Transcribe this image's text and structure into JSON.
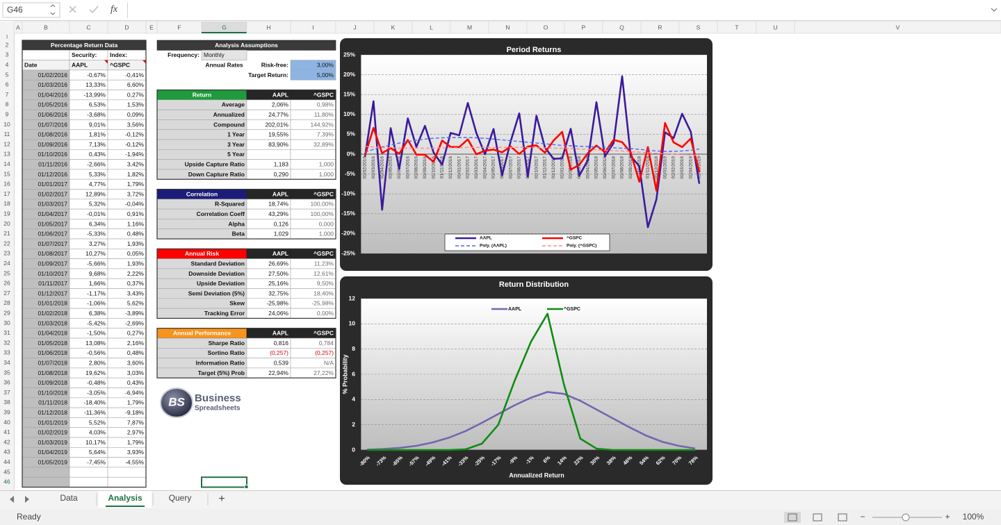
{
  "name_box": "G46",
  "formula_icon": "fx",
  "column_headers": [
    "A",
    "B",
    "C",
    "D",
    "E",
    "F",
    "G",
    "H",
    "I",
    "J",
    "K",
    "L",
    "M",
    "N",
    "O",
    "P",
    "Q",
    "R",
    "S",
    "T",
    "U",
    "V"
  ],
  "row_numbers": [
    1,
    2,
    3,
    4,
    5,
    6,
    7,
    8,
    9,
    10,
    11,
    12,
    13,
    14,
    15,
    16,
    17,
    18,
    19,
    20,
    21,
    22,
    23,
    24,
    25,
    26,
    27,
    28,
    29,
    30,
    31,
    32,
    33,
    34,
    35,
    36,
    37,
    38,
    39,
    40,
    41,
    42,
    43,
    44,
    45,
    46
  ],
  "return_data": {
    "title": "Percentage Return Data",
    "security_label": "Security:",
    "index_label": "Index:",
    "headers": [
      "Date",
      "AAPL",
      "^GSPC"
    ],
    "rows": [
      [
        "01/02/2016",
        "-0,67%",
        "-0,41%"
      ],
      [
        "01/03/2016",
        "13,33%",
        "6,60%"
      ],
      [
        "01/04/2016",
        "-13,99%",
        "0,27%"
      ],
      [
        "01/05/2016",
        "6,53%",
        "1,53%"
      ],
      [
        "01/06/2016",
        "-3,68%",
        "0,09%"
      ],
      [
        "01/07/2016",
        "9,01%",
        "3,56%"
      ],
      [
        "01/08/2016",
        "1,81%",
        "-0,12%"
      ],
      [
        "01/09/2016",
        "7,13%",
        "-0,12%"
      ],
      [
        "01/10/2016",
        "0,43%",
        "-1,94%"
      ],
      [
        "01/11/2016",
        "-2,66%",
        "3,42%"
      ],
      [
        "01/12/2016",
        "5,33%",
        "1,82%"
      ],
      [
        "01/01/2017",
        "4,77%",
        "1,79%"
      ],
      [
        "01/02/2017",
        "12,89%",
        "3,72%"
      ],
      [
        "01/03/2017",
        "5,32%",
        "-0,04%"
      ],
      [
        "01/04/2017",
        "-0,01%",
        "0,91%"
      ],
      [
        "01/05/2017",
        "6,34%",
        "1,16%"
      ],
      [
        "01/06/2017",
        "-5,33%",
        "0,48%"
      ],
      [
        "01/07/2017",
        "3,27%",
        "1,93%"
      ],
      [
        "01/08/2017",
        "10,27%",
        "0,05%"
      ],
      [
        "01/09/2017",
        "-5,66%",
        "1,93%"
      ],
      [
        "01/10/2017",
        "9,68%",
        "2,22%"
      ],
      [
        "01/11/2017",
        "1,66%",
        "0,37%"
      ],
      [
        "01/12/2017",
        "-1,17%",
        "3,43%"
      ],
      [
        "01/01/2018",
        "-1,06%",
        "5,62%"
      ],
      [
        "01/02/2018",
        "6,38%",
        "-3,89%"
      ],
      [
        "01/03/2018",
        "-5,42%",
        "-2,69%"
      ],
      [
        "01/04/2018",
        "-1,50%",
        "0,27%"
      ],
      [
        "01/05/2018",
        "13,08%",
        "2,16%"
      ],
      [
        "01/06/2018",
        "-0,56%",
        "0,48%"
      ],
      [
        "01/07/2018",
        "2,80%",
        "3,60%"
      ],
      [
        "01/08/2018",
        "19,62%",
        "3,03%"
      ],
      [
        "01/09/2018",
        "-0,48%",
        "0,43%"
      ],
      [
        "01/10/2018",
        "-3,05%",
        "-6,94%"
      ],
      [
        "01/11/2018",
        "-18,40%",
        "1,79%"
      ],
      [
        "01/12/2018",
        "-11,36%",
        "-9,18%"
      ],
      [
        "01/01/2019",
        "5,52%",
        "7,87%"
      ],
      [
        "01/02/2019",
        "4,03%",
        "2,97%"
      ],
      [
        "01/03/2019",
        "10,17%",
        "1,79%"
      ],
      [
        "01/04/2019",
        "5,64%",
        "3,93%"
      ],
      [
        "01/05/2019",
        "-7,45%",
        "-4,55%"
      ]
    ]
  },
  "assumptions": {
    "title": "Analysis Assumptions",
    "frequency_label": "Frequency:",
    "frequency": "Monthly",
    "annual_rates_label": "Annual Rates",
    "risk_free_label": "Risk-free:",
    "risk_free": "3,00%",
    "target_label": "Target Return:",
    "target": "5,00%"
  },
  "stat_tables": [
    {
      "title": "Return",
      "color": "#1f9a3c",
      "headers": [
        "AAPL",
        "^GSPC"
      ],
      "rows": [
        [
          "Average",
          "2,06%",
          "0,98%"
        ],
        [
          "Annualized",
          "24,77%",
          "11,80%"
        ],
        [
          "Compound",
          "202,01%",
          "144,92%"
        ],
        [
          "1 Year",
          "19,55%",
          "7,39%"
        ],
        [
          "3 Year",
          "83,90%",
          "32,89%"
        ],
        [
          "5 Year"
        ],
        [
          "Upside Capture Ratio",
          "1,183",
          "1,000"
        ],
        [
          "Down Capture Ratio",
          "0,290",
          "1,000"
        ]
      ]
    },
    {
      "title": "Correlation",
      "color": "#1c1c78",
      "headers": [
        "AAPL",
        "^GSPC"
      ],
      "rows": [
        [
          "R-Squared",
          "18,74%",
          "100,00%"
        ],
        [
          "Correlation Coeff",
          "43,29%",
          "100,00%"
        ],
        [
          "Alpha",
          "0,126",
          "0,000"
        ],
        [
          "Beta",
          "1,029",
          "1,000"
        ]
      ]
    },
    {
      "title": "Annual Risk",
      "color": "#ff0000",
      "headers": [
        "AAPL",
        "^GSPC"
      ],
      "rows": [
        [
          "Standard Deviation",
          "26,69%",
          "11,23%"
        ],
        [
          "Downside Deviation",
          "27,50%",
          "12,61%"
        ],
        [
          "Upside Deviation",
          "25,16%",
          "9,50%"
        ],
        [
          "Semi Deviation (5%)",
          "32,75%",
          "18,40%"
        ],
        [
          "Skew",
          "-25,98%",
          "-25,98%"
        ],
        [
          "Tracking Error",
          "24,06%",
          "0,00%"
        ]
      ]
    },
    {
      "title": "Annual Performance",
      "color": "#f7941d",
      "headers": [
        "AAPL",
        "^GSPC"
      ],
      "rows": [
        [
          "Sharpe Ratio",
          "0,816",
          "0,784"
        ],
        [
          "Sortino Ratio",
          "(0,257)",
          "(0,257)"
        ],
        [
          "Information Ratio",
          "0,539",
          "N/A"
        ],
        [
          "Target (5%) Prob",
          "22,94%",
          "27,22%"
        ]
      ]
    }
  ],
  "logo": {
    "mark": "BS",
    "line1": "Business",
    "line2": "Spreadsheets"
  },
  "chart_data": [
    {
      "type": "line",
      "title": "Period Returns",
      "grid": true,
      "categories": [
        "01/02/2016",
        "01/03/2016",
        "01/04/2016",
        "01/05/2016",
        "01/06/2016",
        "01/07/2016",
        "01/08/2016",
        "01/09/2016",
        "01/10/2016",
        "01/11/2016",
        "01/12/2016",
        "01/01/2017",
        "01/02/2017",
        "01/03/2017",
        "01/04/2017",
        "01/05/2017",
        "01/06/2017",
        "01/07/2017",
        "01/08/2017",
        "01/09/2017",
        "01/10/2017",
        "01/11/2017",
        "01/12/2017",
        "01/01/2018",
        "01/02/2018",
        "01/03/2018",
        "01/04/2018",
        "01/05/2018",
        "01/06/2018",
        "01/07/2018",
        "01/08/2018",
        "01/09/2018",
        "01/10/2018",
        "01/11/2018",
        "01/12/2018",
        "01/01/2019",
        "01/02/2019",
        "01/03/2019",
        "01/04/2019",
        "01/05/2019"
      ],
      "series": [
        {
          "name": "AAPL",
          "color": "#3b1a9c",
          "values": [
            -0.67,
            13.33,
            -13.99,
            6.53,
            -3.68,
            9.01,
            1.81,
            7.13,
            0.43,
            -2.66,
            5.33,
            4.77,
            12.89,
            5.32,
            -0.01,
            6.34,
            -5.33,
            3.27,
            10.27,
            -5.66,
            9.68,
            1.66,
            -1.17,
            -1.06,
            6.38,
            -5.42,
            -1.5,
            13.08,
            -0.56,
            2.8,
            19.62,
            -0.48,
            -3.05,
            -18.4,
            -11.36,
            5.52,
            4.03,
            10.17,
            5.64,
            -7.45
          ]
        },
        {
          "name": "^GSPC",
          "color": "#ff0000",
          "values": [
            -0.41,
            6.6,
            0.27,
            1.53,
            0.09,
            3.56,
            -0.12,
            -0.12,
            -1.94,
            3.42,
            1.82,
            1.79,
            3.72,
            -0.04,
            0.91,
            1.16,
            0.48,
            1.93,
            0.05,
            1.93,
            2.22,
            0.37,
            3.43,
            5.62,
            -3.89,
            -2.69,
            0.27,
            2.16,
            0.48,
            3.6,
            3.03,
            0.43,
            -6.94,
            1.79,
            -9.18,
            7.87,
            2.97,
            1.79,
            3.93,
            -4.55
          ]
        },
        {
          "name": "Poly. (AAPL)",
          "color": "#4a68f5",
          "dashed": true,
          "values": [
            0.5,
            1.2,
            1.8,
            2.3,
            2.8,
            3.2,
            3.5,
            3.8,
            4.0,
            4.1,
            4.2,
            4.2,
            4.2,
            4.1,
            4.0,
            3.8,
            3.6,
            3.4,
            3.2,
            3.0,
            2.8,
            2.6,
            2.4,
            2.2,
            2.1,
            2.0,
            1.9,
            1.8,
            1.7,
            1.6,
            1.5,
            1.4,
            1.2,
            1.0,
            0.8,
            0.7,
            0.7,
            0.8,
            1.0,
            1.3
          ]
        },
        {
          "name": "Poly. (^GSPC)",
          "color": "#ff8a8a",
          "dashed": true,
          "values": [
            2.0,
            1.8,
            1.7,
            1.6,
            1.5,
            1.5,
            1.5,
            1.5,
            1.5,
            1.6,
            1.6,
            1.6,
            1.7,
            1.7,
            1.7,
            1.7,
            1.7,
            1.7,
            1.7,
            1.7,
            1.6,
            1.6,
            1.5,
            1.5,
            1.4,
            1.3,
            1.2,
            1.1,
            1.0,
            0.9,
            0.8,
            0.6,
            0.5,
            0.3,
            0.2,
            0.1,
            0.0,
            -0.1,
            -0.2,
            -0.3
          ]
        }
      ],
      "ylim": [
        -25,
        25
      ],
      "yticks": [
        {
          "value": -25,
          "label": "-25%"
        },
        {
          "value": -20,
          "label": "-20%"
        },
        {
          "value": -15,
          "label": "-15%"
        },
        {
          "value": -10,
          "label": "-10%"
        },
        {
          "value": -5,
          "label": "-5%"
        },
        {
          "value": 0,
          "label": "0%"
        },
        {
          "value": 5,
          "label": "5%"
        },
        {
          "value": 10,
          "label": "10%"
        },
        {
          "value": 15,
          "label": "15%"
        },
        {
          "value": 20,
          "label": "20%"
        },
        {
          "value": 25,
          "label": "25%"
        }
      ]
    },
    {
      "type": "line",
      "title": "Return Distribution",
      "grid": true,
      "x_label": "Annualized Return",
      "y_label": "% Probability",
      "categories": [
        "-80%",
        "-73%",
        "-65%",
        "-57%",
        "-49%",
        "-41%",
        "-33%",
        "-25%",
        "-17%",
        "-9%",
        "-1%",
        "6%",
        "14%",
        "22%",
        "30%",
        "38%",
        "46%",
        "54%",
        "62%",
        "70%",
        "78%"
      ],
      "series": [
        {
          "name": "AAPL",
          "color": "#7466ae",
          "values": [
            0.03,
            0.08,
            0.17,
            0.33,
            0.6,
            0.98,
            1.5,
            2.15,
            2.85,
            3.55,
            4.15,
            4.6,
            4.45,
            3.9,
            3.2,
            2.5,
            1.8,
            1.15,
            0.65,
            0.33,
            0.12
          ]
        },
        {
          "name": "^GSPC",
          "color": "#0f8c12",
          "values": [
            0,
            0,
            0,
            0,
            0,
            0,
            0.05,
            0.5,
            2.0,
            5.5,
            8.6,
            10.8,
            5.2,
            0.9,
            0.1,
            0,
            0,
            0,
            0,
            0,
            0
          ]
        }
      ],
      "ylim": [
        0,
        12
      ],
      "yticks": [
        0,
        2,
        4,
        6,
        8,
        10,
        12
      ]
    }
  ],
  "sheet_tabs": [
    "Data",
    "Analysis",
    "Query"
  ],
  "active_tab": 1,
  "add_tab": "+",
  "status": "Ready",
  "zoom": "100%",
  "zoom_minus": "−",
  "zoom_plus": "+"
}
